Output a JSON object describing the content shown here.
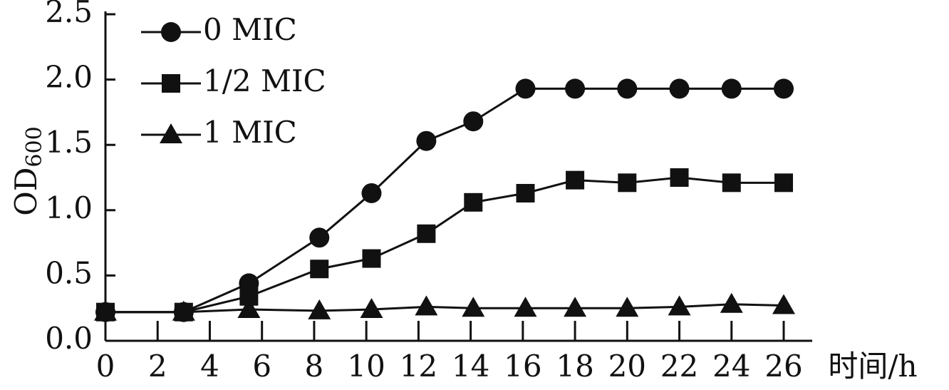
{
  "chart_data": {
    "type": "line",
    "y_label": "OD",
    "y_label_subscript": "600",
    "x_label": "时间/h",
    "x": [
      0,
      3,
      5.5,
      8.2,
      10.2,
      12.3,
      14.1,
      16.1,
      18,
      20,
      22,
      24,
      26
    ],
    "xlim": [
      0,
      26
    ],
    "xticks": [
      0,
      2,
      4,
      6,
      8,
      10,
      12,
      14,
      16,
      18,
      20,
      22,
      24,
      26
    ],
    "ylim": [
      0,
      2.5
    ],
    "yticks": [
      {
        "value": 0,
        "label": "0.0"
      },
      0.5,
      {
        "value": 1,
        "label": "1.0"
      },
      1.5,
      {
        "value": 2,
        "label": "2.0"
      },
      2.5
    ],
    "legend": "top-left",
    "series": [
      {
        "name": "0 MIC",
        "color": "#111111",
        "marker": "circle",
        "values": [
          0.22,
          0.22,
          0.44,
          0.79,
          1.13,
          1.53,
          1.68,
          1.93,
          1.93,
          1.93,
          1.93,
          1.93,
          1.93
        ]
      },
      {
        "name": "1/2 MIC",
        "color": "#111111",
        "marker": "square",
        "values": [
          0.22,
          0.22,
          0.34,
          0.55,
          0.63,
          0.82,
          1.06,
          1.13,
          1.23,
          1.21,
          1.25,
          1.21,
          1.21
        ]
      },
      {
        "name": "1 MIC",
        "color": "#111111",
        "marker": "triangle",
        "values": [
          0.22,
          0.22,
          0.24,
          0.23,
          0.24,
          0.26,
          0.25,
          0.25,
          0.25,
          0.25,
          0.26,
          0.28,
          0.27
        ]
      }
    ]
  }
}
